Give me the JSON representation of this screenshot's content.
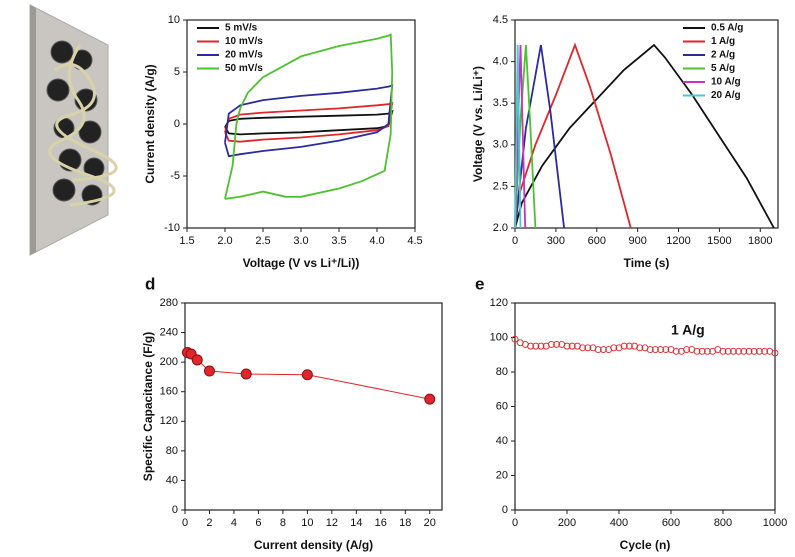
{
  "chart_data": [
    {
      "type": "line",
      "xlabel": "Voltage (V vs Li⁺/Li))",
      "ylabel": "Current density (A/g)",
      "xlim": [
        1.5,
        4.5
      ],
      "xticks": [
        1.5,
        {
          "value": 2,
          "label": "2.0"
        },
        2.5,
        {
          "value": 3,
          "label": "3.0"
        },
        3.5,
        {
          "value": 4,
          "label": "4.0"
        },
        4.5
      ],
      "ylim": [
        -10,
        10
      ],
      "yticks": [
        -10,
        -5,
        0,
        5,
        10
      ],
      "legend": "upper left",
      "series": [
        {
          "name": "5 mV/s",
          "color": "#111111",
          "x": [
            2.0,
            2.05,
            2.2,
            2.5,
            3.0,
            3.5,
            4.0,
            4.15,
            4.2,
            4.15,
            4.0,
            3.5,
            3.0,
            2.5,
            2.2,
            2.05,
            2.0
          ],
          "values": [
            -0.3,
            0.3,
            0.5,
            0.6,
            0.7,
            0.8,
            0.9,
            1.0,
            1.2,
            -0.2,
            -0.4,
            -0.6,
            -0.8,
            -0.9,
            -1.0,
            -0.9,
            -0.3
          ]
        },
        {
          "name": "10 mV/s",
          "color": "#e0262b",
          "x": [
            2.0,
            2.05,
            2.2,
            2.5,
            3.0,
            3.5,
            4.0,
            4.15,
            4.2,
            4.15,
            4.0,
            3.5,
            3.0,
            2.5,
            2.2,
            2.05,
            2.0
          ],
          "values": [
            -0.8,
            0.5,
            0.9,
            1.1,
            1.3,
            1.5,
            1.8,
            1.9,
            2.0,
            -0.2,
            -0.6,
            -1.0,
            -1.3,
            -1.5,
            -1.7,
            -1.6,
            -0.8
          ]
        },
        {
          "name": "20 mV/s",
          "color": "#2b2ba0",
          "x": [
            2.0,
            2.05,
            2.2,
            2.5,
            3.0,
            3.5,
            4.0,
            4.15,
            4.2,
            4.15,
            4.0,
            3.5,
            3.0,
            2.5,
            2.2,
            2.05,
            2.0
          ],
          "values": [
            -1.8,
            1.0,
            1.8,
            2.3,
            2.7,
            3.0,
            3.4,
            3.6,
            3.7,
            0,
            -0.8,
            -1.6,
            -2.2,
            -2.6,
            -2.9,
            -3.1,
            -1.8
          ]
        },
        {
          "name": "50 mV/s",
          "color": "#4cc22e",
          "x": [
            2.0,
            2.1,
            2.15,
            2.2,
            2.3,
            2.5,
            3.0,
            3.5,
            4.0,
            4.15,
            4.18,
            4.2,
            4.18,
            4.1,
            3.8,
            3.5,
            3.0,
            2.8,
            2.5,
            2.2,
            2.0
          ],
          "values": [
            -7.2,
            -4.0,
            0,
            1.5,
            3.0,
            4.5,
            6.5,
            7.5,
            8.2,
            8.5,
            8.6,
            5.0,
            -1.0,
            -4.5,
            -5.5,
            -6.2,
            -7.0,
            -7.0,
            -6.5,
            -7.0,
            -7.2
          ]
        }
      ]
    },
    {
      "type": "line",
      "xlabel": "Time (s)",
      "ylabel": "Voltage (V vs. Li/Li⁺)",
      "xlim": [
        0,
        1930
      ],
      "xticks": [
        0,
        300,
        600,
        900,
        1200,
        1500,
        1800
      ],
      "ylim": [
        2,
        4.5
      ],
      "yticks": [
        {
          "value": 2,
          "label": "2.0"
        },
        2.5,
        {
          "value": 3,
          "label": "3.0"
        },
        3.5,
        {
          "value": 4,
          "label": "4.0"
        },
        4.5
      ],
      "legend": "upper right",
      "series": [
        {
          "name": "0.5 A/g",
          "color": "#111111",
          "x": [
            0,
            50,
            200,
            400,
            600,
            800,
            1020,
            1100,
            1300,
            1500,
            1700,
            1900
          ],
          "values": [
            2.0,
            2.3,
            2.75,
            3.2,
            3.55,
            3.9,
            4.2,
            4.05,
            3.6,
            3.1,
            2.6,
            2.0
          ]
        },
        {
          "name": "1 A/g",
          "color": "#e0262b",
          "x": [
            0,
            30,
            150,
            300,
            440,
            550,
            700,
            850
          ],
          "values": [
            2.0,
            2.4,
            3.0,
            3.6,
            4.2,
            3.7,
            2.9,
            2.0
          ]
        },
        {
          "name": "2 A/g",
          "color": "#2b2ba0",
          "x": [
            0,
            80,
            190,
            260,
            360
          ],
          "values": [
            2.0,
            3.2,
            4.2,
            3.4,
            2.0
          ]
        },
        {
          "name": "5 A/g",
          "color": "#4cc22e",
          "x": [
            0,
            40,
            80,
            110,
            150
          ],
          "values": [
            2.0,
            3.3,
            4.2,
            3.3,
            2.0
          ]
        },
        {
          "name": "10 A/g",
          "color": "#c733c0",
          "x": [
            0,
            40,
            75
          ],
          "values": [
            2.0,
            4.2,
            2.0
          ]
        },
        {
          "name": "20 A/g",
          "color": "#4cc8d0",
          "x": [
            0,
            20,
            40
          ],
          "values": [
            2.0,
            4.2,
            2.0
          ]
        }
      ]
    },
    {
      "type": "line",
      "panel": "d",
      "markers": true,
      "color": "#e0262b",
      "xlabel": "Current density (A/g)",
      "ylabel": "Specific Capacitance (F/g)",
      "xlim": [
        0,
        21
      ],
      "xticks": [
        0,
        2,
        4,
        6,
        8,
        10,
        12,
        14,
        16,
        18,
        20
      ],
      "ylim": [
        0,
        280
      ],
      "yticks": [
        0,
        40,
        80,
        120,
        160,
        200,
        240,
        280
      ],
      "x": [
        0.2,
        0.5,
        1,
        2,
        5,
        10,
        20
      ],
      "values": [
        213,
        211,
        203,
        188,
        184,
        183,
        150
      ]
    },
    {
      "type": "scatter",
      "panel": "e",
      "color": "#e0262b",
      "annotation": "1 A/g",
      "xlabel": "Cycle (n)",
      "xlim": [
        0,
        1000
      ],
      "xticks": [
        0,
        200,
        400,
        600,
        800,
        1000
      ],
      "ylim": [
        0,
        120
      ],
      "yticks": [
        0,
        20,
        40,
        60,
        80,
        100,
        120
      ],
      "x": [
        0,
        20,
        40,
        60,
        80,
        100,
        120,
        140,
        160,
        180,
        200,
        220,
        240,
        260,
        280,
        300,
        320,
        340,
        360,
        380,
        400,
        420,
        440,
        460,
        480,
        500,
        520,
        540,
        560,
        580,
        600,
        620,
        640,
        660,
        680,
        700,
        720,
        740,
        760,
        780,
        800,
        820,
        840,
        860,
        880,
        900,
        920,
        940,
        960,
        980,
        1000
      ],
      "values": [
        99,
        97,
        96,
        95,
        95,
        95,
        95,
        96,
        96,
        96,
        95,
        95,
        95,
        94,
        94,
        94,
        93,
        93,
        93,
        94,
        94,
        95,
        95,
        95,
        94,
        94,
        93,
        93,
        93,
        93,
        93,
        92,
        92,
        93,
        93,
        92,
        92,
        92,
        92,
        93,
        92,
        92,
        92,
        92,
        92,
        92,
        92,
        92,
        92,
        92,
        91
      ]
    }
  ]
}
